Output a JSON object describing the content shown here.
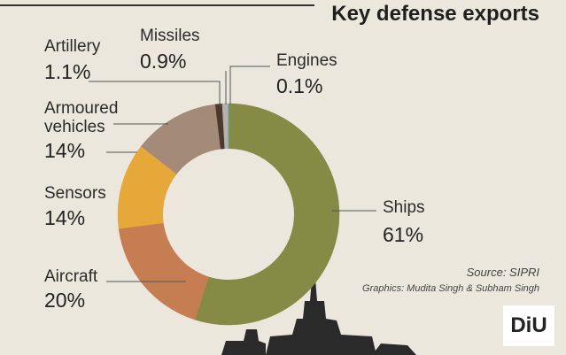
{
  "chart_data": {
    "type": "pie",
    "donut": true,
    "title": "Key defense exports",
    "categories": [
      "Ships",
      "Aircraft",
      "Sensors",
      "Armoured vehicles",
      "Artillery",
      "Missiles",
      "Engines"
    ],
    "values": [
      61,
      20,
      14,
      14,
      1.1,
      0.9,
      0.1
    ],
    "value_labels": [
      "61%",
      "20%",
      "14%",
      "14%",
      "1.1%",
      "0.9%",
      "0.1%"
    ],
    "colors": [
      "#858a45",
      "#c77d52",
      "#e6a838",
      "#a48a78",
      "#4b3a2b",
      "#b9b1a6",
      "#5fb3dc"
    ],
    "source": "Source: SIPRI",
    "credit": "Graphics: Mudita Singh & Subham Singh",
    "logo": "DiU"
  }
}
